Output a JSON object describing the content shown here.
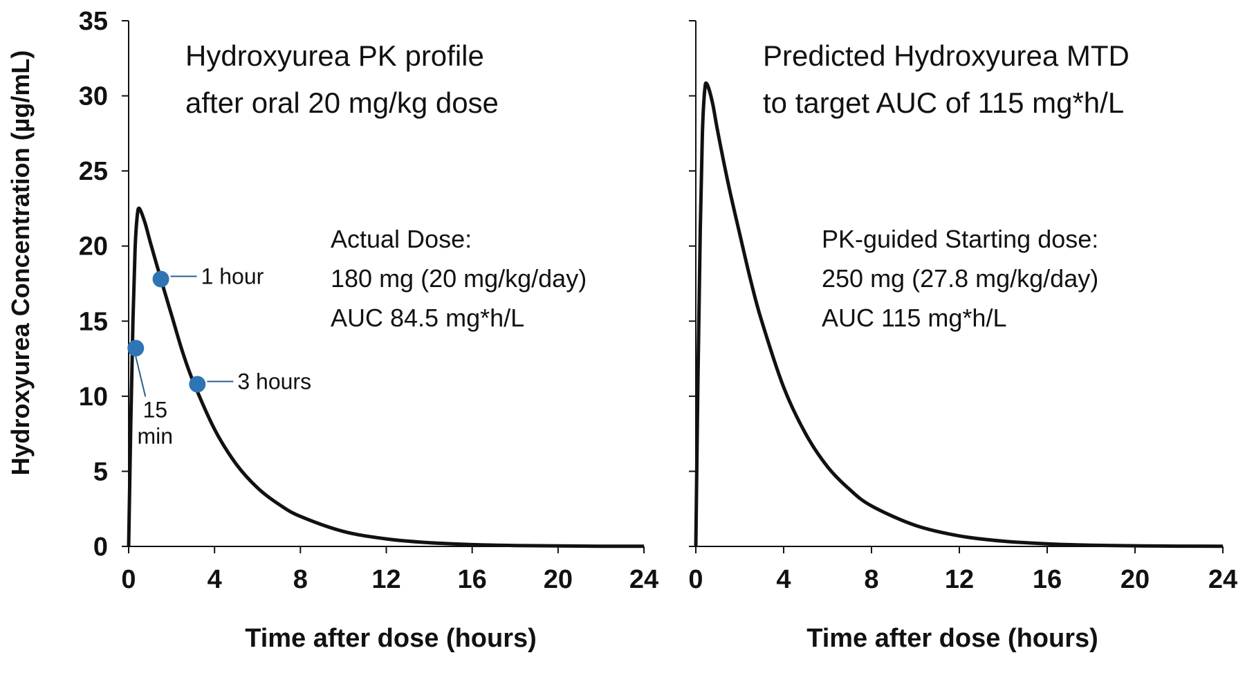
{
  "chart_data": {
    "type": "line",
    "ylabel": "Hydroxyurea Concentration (µg/mL)",
    "ylim": [
      0,
      35
    ],
    "yticks": [
      0,
      5,
      10,
      15,
      20,
      25,
      30,
      35
    ],
    "xticks": [
      0,
      4,
      8,
      12,
      16,
      20,
      24
    ],
    "grid": false,
    "panels": [
      {
        "title_lines": [
          "Hydroxyurea PK profile",
          "after oral 20 mg/kg dose"
        ],
        "annotation_lines": [
          "Actual Dose:",
          "180 mg (20 mg/kg/day)",
          "AUC 84.5 mg*h/L"
        ],
        "xlabel": "Time after dose (hours)",
        "xlim": [
          0,
          24
        ],
        "series": [
          {
            "x": [
              0,
              0.1,
              0.2,
              0.3,
              0.4,
              0.5,
              0.75,
              1,
              1.5,
              2,
              2.5,
              3,
              4,
              5,
              6,
              7,
              8,
              10,
              12,
              14,
              16,
              18,
              20,
              22,
              24
            ],
            "y": [
              0,
              8.2,
              15.0,
              19.8,
              22.0,
              22.5,
              21.6,
              20.3,
              17.8,
              15.4,
              13.0,
              11.0,
              7.8,
              5.5,
              3.9,
              2.8,
              2.0,
              1.0,
              0.5,
              0.25,
              0.12,
              0.06,
              0.03,
              0.015,
              0.008
            ]
          }
        ],
        "points": [
          {
            "label_lines": [
              "15",
              "min"
            ],
            "x": 0.33,
            "y": 13.2
          },
          {
            "label_lines": [
              "1 hour"
            ],
            "x": 1.5,
            "y": 17.8
          },
          {
            "label_lines": [
              "3 hours"
            ],
            "x": 3.2,
            "y": 10.8
          }
        ]
      },
      {
        "title_lines": [
          "Predicted Hydroxyurea MTD",
          "to target AUC of 115 mg*h/L"
        ],
        "annotation_lines": [
          "PK-guided Starting dose:",
          "250 mg (27.8 mg/kg/day)",
          "AUC 115 mg*h/L"
        ],
        "xlabel": "Time after dose (hours)",
        "xlim": [
          0,
          24
        ],
        "series": [
          {
            "x": [
              0,
              0.1,
              0.2,
              0.3,
              0.4,
              0.5,
              0.75,
              1,
              1.5,
              2,
              2.5,
              3,
              4,
              5,
              6,
              7,
              8,
              10,
              12,
              14,
              16,
              18,
              20,
              22,
              24
            ],
            "y": [
              0,
              11.5,
              21.0,
              27.5,
              30.3,
              30.8,
              29.6,
              27.6,
              24.0,
              20.8,
              17.7,
              15.0,
              10.6,
              7.5,
              5.3,
              3.8,
              2.7,
              1.4,
              0.7,
              0.35,
              0.17,
              0.085,
              0.04,
              0.02,
              0.01
            ]
          }
        ],
        "points": []
      }
    ]
  },
  "colors": {
    "line": "#111111",
    "point": "#2e75b6",
    "leader": "#2e5d8c",
    "axis": "#111111"
  }
}
